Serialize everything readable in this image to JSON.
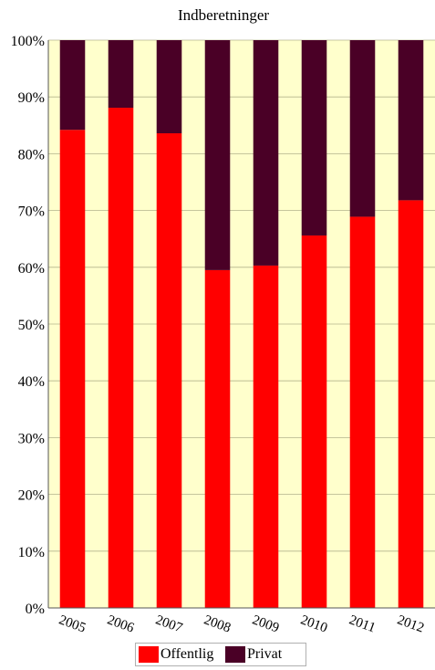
{
  "chart_data": {
    "type": "bar",
    "stacked": true,
    "title": "Indberetninger",
    "categories": [
      "2005",
      "2006",
      "2007",
      "2008",
      "2009",
      "2010",
      "2011",
      "2012"
    ],
    "series": [
      {
        "name": "Offentlig",
        "color": "#ff0000",
        "values": [
          84.2,
          88.1,
          83.6,
          59.5,
          60.3,
          65.6,
          68.9,
          71.8
        ]
      },
      {
        "name": "Privat",
        "color": "#4a0026",
        "values": [
          15.8,
          11.9,
          16.4,
          40.5,
          39.7,
          34.4,
          31.1,
          28.2
        ]
      }
    ],
    "ylim": [
      0,
      100
    ],
    "yticks": [
      "0%",
      "10%",
      "20%",
      "30%",
      "40%",
      "50%",
      "60%",
      "70%",
      "80%",
      "90%",
      "100%"
    ],
    "grid": true,
    "plot_background": "#ffffcc",
    "legend_position": "bottom"
  }
}
